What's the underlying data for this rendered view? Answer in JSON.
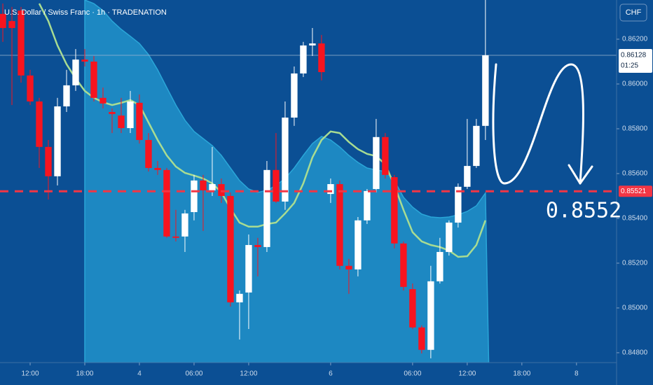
{
  "chart_data": {
    "type": "candlestick",
    "title": "U.S. Dollar / Swiss Franc · 1h · TRADENATION",
    "currency": "CHF",
    "annotation": "0.8552",
    "up_color": "#ffffff",
    "down_color": "#f7141f",
    "open": [
      0.86313,
      0.86281,
      0.86328,
      0.86038,
      0.85922,
      0.85719,
      0.85588,
      0.859,
      0.85994,
      0.86109,
      0.861,
      0.85938,
      0.85875,
      0.85859,
      0.85803,
      0.85916,
      0.8575,
      0.85625,
      0.85616,
      0.85319,
      0.85319,
      0.85428,
      0.85569,
      0.85525,
      0.85553,
      0.855,
      0.85025,
      0.85069,
      0.85281,
      0.85272,
      0.85616,
      0.85475,
      0.8585,
      0.86047,
      0.86172,
      0.86181,
      0.85509,
      0.85553,
      0.85188,
      0.85172,
      0.85391,
      0.85531,
      0.85763,
      0.85584,
      0.85288,
      0.85084,
      0.84913,
      0.84813,
      0.85119,
      0.8525,
      0.85381,
      0.85541,
      0.85634,
      0.85813
    ],
    "high": [
      0.86359,
      0.86344,
      0.86344,
      0.86063,
      0.85938,
      0.8575,
      0.85938,
      0.86063,
      0.86156,
      0.86156,
      0.86125,
      0.85984,
      0.85891,
      0.85938,
      0.85969,
      0.85953,
      0.85781,
      0.85656,
      0.85625,
      0.85438,
      0.85438,
      0.85594,
      0.85594,
      0.85719,
      0.85578,
      0.85516,
      0.85078,
      0.85328,
      0.85313,
      0.85656,
      0.85781,
      0.85922,
      0.86078,
      0.86188,
      0.8625,
      0.86219,
      0.85578,
      0.85569,
      0.85219,
      0.85406,
      0.85531,
      0.85844,
      0.85781,
      0.85594,
      0.85297,
      0.85109,
      0.84922,
      0.85188,
      0.85313,
      0.85391,
      0.85556,
      0.85844,
      0.85844,
      0.86375
    ],
    "low": [
      0.86188,
      0.85906,
      0.86006,
      0.85906,
      0.85625,
      0.85484,
      0.85547,
      0.85875,
      0.85969,
      0.86078,
      0.85922,
      0.85891,
      0.85781,
      0.85781,
      0.85781,
      0.85734,
      0.85609,
      0.85594,
      0.85313,
      0.85297,
      0.8525,
      0.85391,
      0.85344,
      0.855,
      0.85469,
      0.85006,
      0.84859,
      0.84906,
      0.85141,
      0.8525,
      0.85469,
      0.85438,
      0.85813,
      0.86031,
      0.86125,
      0.86016,
      0.85469,
      0.85172,
      0.85063,
      0.85141,
      0.85375,
      0.85516,
      0.85578,
      0.85266,
      0.85078,
      0.84906,
      0.84797,
      0.84775,
      0.85109,
      0.85234,
      0.85359,
      0.85531,
      0.85625,
      0.8575
    ],
    "close": [
      0.8625,
      0.8625,
      0.86038,
      0.85922,
      0.85719,
      0.85588,
      0.859,
      0.85994,
      0.86109,
      0.861,
      0.85938,
      0.85913,
      0.85866,
      0.85803,
      0.85922,
      0.8575,
      0.85625,
      0.85616,
      0.85319,
      0.85313,
      0.85422,
      0.85569,
      0.85525,
      0.85553,
      0.855,
      0.85025,
      0.85063,
      0.85281,
      0.85272,
      0.85616,
      0.85475,
      0.8585,
      0.86047,
      0.86172,
      0.86181,
      0.86053,
      0.85553,
      0.85188,
      0.85172,
      0.85391,
      0.85522,
      0.85763,
      0.85594,
      0.85288,
      0.85094,
      0.84913,
      0.84813,
      0.85119,
      0.8525,
      0.85381,
      0.85541,
      0.85634,
      0.85813,
      0.86128
    ],
    "overlays": [
      {
        "color": "#1d88c2",
        "fill": true,
        "values": [
          null,
          null,
          null,
          null,
          null,
          null,
          null,
          null,
          null,
          0.86375,
          0.86359,
          0.86328,
          0.86281,
          0.86244,
          0.86213,
          0.86181,
          0.86131,
          0.86063,
          0.85984,
          0.85906,
          0.85838,
          0.85788,
          0.85756,
          0.85725,
          0.85681,
          0.85625,
          0.85569,
          0.85531,
          0.85516,
          0.85525,
          0.85547,
          0.85578,
          0.85625,
          0.85681,
          0.85734,
          0.85766,
          0.8575,
          0.85719,
          0.85681,
          0.8565,
          0.85625,
          0.85616,
          0.85609,
          0.85569,
          0.85494,
          0.8545,
          0.85419,
          0.85406,
          0.85403,
          0.85406,
          0.85416,
          0.85431,
          0.85456,
          0.85513
        ]
      },
      {
        "color": "#a8dc92",
        "fill": false,
        "values": [
          null,
          null,
          null,
          null,
          0.86359,
          0.86281,
          0.86172,
          0.86088,
          0.86025,
          0.85969,
          0.85938,
          0.85919,
          0.85906,
          0.85916,
          0.85928,
          0.85906,
          0.85828,
          0.8575,
          0.85681,
          0.85631,
          0.85603,
          0.85591,
          0.85578,
          0.85556,
          0.85516,
          0.85444,
          0.85381,
          0.85363,
          0.85363,
          0.85375,
          0.85381,
          0.85422,
          0.85469,
          0.85556,
          0.85672,
          0.8575,
          0.85788,
          0.85781,
          0.85741,
          0.85709,
          0.85688,
          0.85678,
          0.85641,
          0.85547,
          0.85438,
          0.85338,
          0.85297,
          0.85281,
          0.85272,
          0.85256,
          0.85228,
          0.85231,
          0.85281,
          0.85391
        ]
      }
    ],
    "level": {
      "value": 0.85521,
      "label": "0.85521",
      "color": "#f23645"
    },
    "last_price": {
      "value": 0.86128,
      "label": "0.86128",
      "countdown": "01:25"
    },
    "xlim": [
      -0.31,
      67.4
    ],
    "ylim": [
      0.84756,
      0.86375
    ],
    "xticks": [
      {
        "value": 3,
        "label": "12:00"
      },
      {
        "value": 9,
        "label": "18:00"
      },
      {
        "value": 15,
        "label": "4"
      },
      {
        "value": 21,
        "label": "06:00"
      },
      {
        "value": 27,
        "label": "12:00"
      },
      {
        "value": 36,
        "label": "6"
      },
      {
        "value": 45,
        "label": "06:00"
      },
      {
        "value": 51,
        "label": "12:00"
      },
      {
        "value": 57,
        "label": "18:00"
      },
      {
        "value": 63,
        "label": "8"
      }
    ],
    "yticks": [
      {
        "value": 0.862,
        "label": "0.86200"
      },
      {
        "value": 0.86,
        "label": "0.86000"
      },
      {
        "value": 0.858,
        "label": "0.85800"
      },
      {
        "value": 0.856,
        "label": "0.85600"
      },
      {
        "value": 0.854,
        "label": "0.85400"
      },
      {
        "value": 0.852,
        "label": "0.85200"
      },
      {
        "value": 0.85,
        "label": "0.85000"
      },
      {
        "value": 0.848,
        "label": "0.84800"
      }
    ]
  }
}
